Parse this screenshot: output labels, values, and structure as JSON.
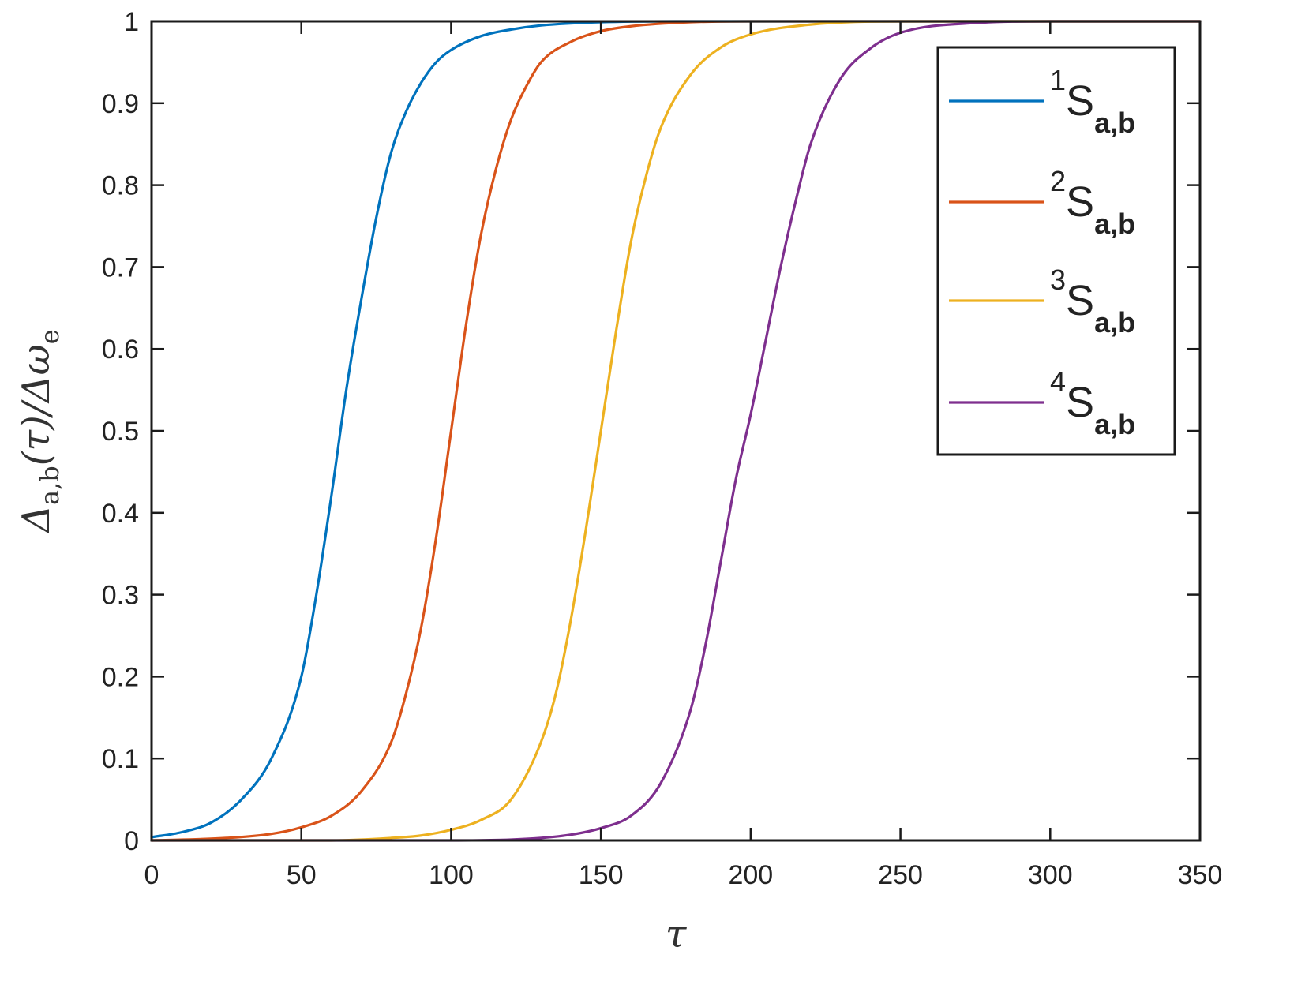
{
  "chart_data": {
    "type": "line",
    "title": "",
    "xlabel": "τ",
    "ylabel": {
      "main": "Δ",
      "sub": "a,b",
      "mid": "(τ)/Δω",
      "sub2": "e"
    },
    "xlim": [
      0,
      350
    ],
    "ylim": [
      0,
      1
    ],
    "xticks": [
      0,
      50,
      100,
      150,
      200,
      250,
      300,
      350
    ],
    "yticks": [
      0,
      0.1,
      0.2,
      0.3,
      0.4,
      0.5,
      0.6,
      0.7,
      0.8,
      0.9,
      1
    ],
    "xtick_labels": [
      "0",
      "50",
      "100",
      "150",
      "200",
      "250",
      "300",
      "350"
    ],
    "ytick_labels": [
      "0",
      "0.1",
      "0.2",
      "0.3",
      "0.4",
      "0.5",
      "0.6",
      "0.7",
      "0.8",
      "0.9",
      "1"
    ],
    "grid": false,
    "legend_position": "top-right",
    "series": [
      {
        "name": "1S a,b",
        "label": {
          "sup": "1",
          "base": "S",
          "sub": "a,b"
        },
        "color": "#0072BD",
        "x": [
          0,
          10,
          20,
          30,
          40,
          50,
          55,
          60,
          65,
          70,
          75,
          80,
          85,
          90,
          95,
          100,
          110,
          120,
          130,
          150,
          175
        ],
        "y": [
          0.004,
          0.01,
          0.022,
          0.05,
          0.1,
          0.2,
          0.3,
          0.42,
          0.55,
          0.66,
          0.76,
          0.84,
          0.89,
          0.925,
          0.95,
          0.965,
          0.982,
          0.99,
          0.995,
          0.999,
          1.0
        ]
      },
      {
        "name": "2S a,b",
        "label": {
          "sup": "2",
          "base": "S",
          "sub": "a,b"
        },
        "color": "#D95319",
        "x": [
          0,
          25,
          40,
          50,
          60,
          70,
          80,
          85,
          90,
          95,
          100,
          105,
          110,
          115,
          120,
          125,
          130,
          140,
          150,
          160,
          180,
          200
        ],
        "y": [
          0.0,
          0.003,
          0.008,
          0.016,
          0.03,
          0.06,
          0.12,
          0.18,
          0.26,
          0.37,
          0.5,
          0.63,
          0.74,
          0.82,
          0.88,
          0.92,
          0.95,
          0.975,
          0.988,
          0.994,
          0.999,
          1.0
        ]
      },
      {
        "name": "3S a,b",
        "label": {
          "sup": "3",
          "base": "S",
          "sub": "a,b"
        },
        "color": "#EDB120",
        "x": [
          0,
          60,
          80,
          90,
          100,
          110,
          120,
          130,
          135,
          140,
          145,
          150,
          155,
          160,
          165,
          170,
          180,
          190,
          200,
          220,
          250
        ],
        "y": [
          0.0,
          0.0,
          0.003,
          0.006,
          0.013,
          0.025,
          0.05,
          0.12,
          0.18,
          0.27,
          0.38,
          0.5,
          0.62,
          0.73,
          0.81,
          0.87,
          0.935,
          0.968,
          0.984,
          0.996,
          1.0
        ]
      },
      {
        "name": "4S a,b",
        "label": {
          "sup": "4",
          "base": "S",
          "sub": "a,b"
        },
        "color": "#7E2F8E",
        "x": [
          0,
          100,
          120,
          130,
          140,
          150,
          160,
          170,
          180,
          185,
          190,
          195,
          200,
          205,
          210,
          215,
          220,
          230,
          240,
          250,
          275,
          300
        ],
        "y": [
          0.0,
          0.0,
          0.001,
          0.003,
          0.007,
          0.015,
          0.03,
          0.07,
          0.16,
          0.24,
          0.34,
          0.44,
          0.52,
          0.61,
          0.7,
          0.78,
          0.85,
          0.93,
          0.967,
          0.986,
          0.998,
          1.0
        ]
      }
    ]
  }
}
